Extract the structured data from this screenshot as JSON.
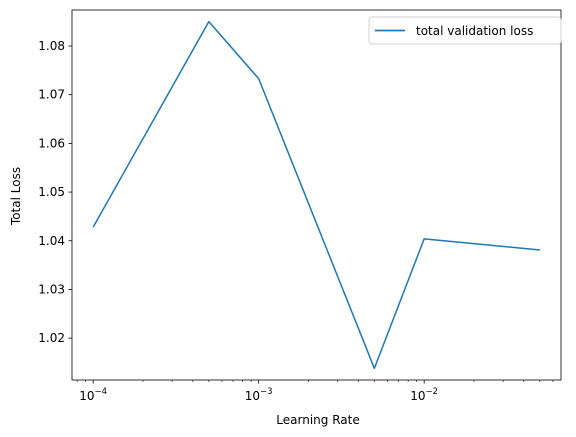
{
  "chart_data": {
    "type": "line",
    "title": "",
    "xlabel": "Learning Rate",
    "ylabel": "Total Loss",
    "x_scale": "log",
    "x_ticks": [
      {
        "value": 0.0001,
        "base": "10",
        "exp": "−4"
      },
      {
        "value": 0.001,
        "base": "10",
        "exp": "−3"
      },
      {
        "value": 0.01,
        "base": "10",
        "exp": "−2"
      }
    ],
    "y_ticks": [
      "1.02",
      "1.03",
      "1.04",
      "1.05",
      "1.06",
      "1.07",
      "1.08"
    ],
    "xlim": [
      7.45e-05,
      0.0671
    ],
    "ylim": [
      1.0114,
      1.0874
    ],
    "grid": false,
    "legend_position": "top-right",
    "series": [
      {
        "name": "total validation loss",
        "color": "#1f77b4",
        "x": [
          0.0001,
          0.0005,
          0.001,
          0.005,
          0.01,
          0.05
        ],
        "y": [
          1.0428,
          1.085,
          1.0733,
          1.0138,
          1.0404,
          1.0381
        ]
      }
    ]
  }
}
